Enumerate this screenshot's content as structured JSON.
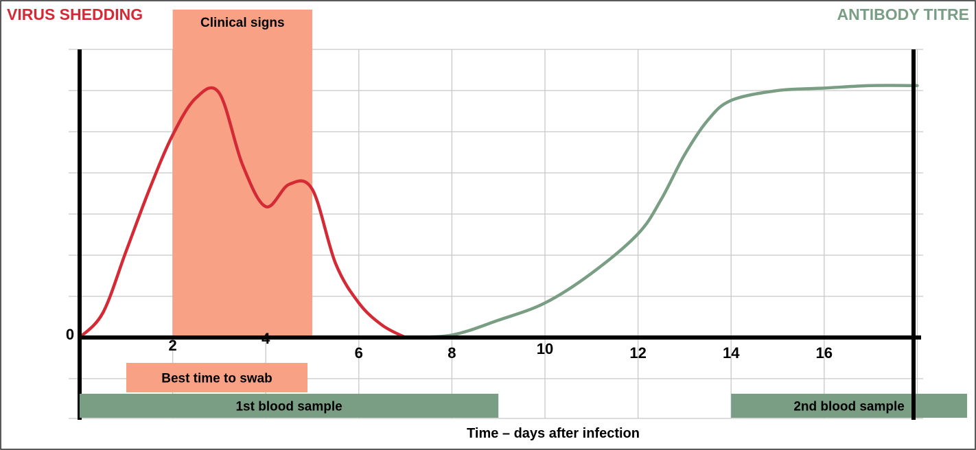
{
  "chart_data": {
    "type": "line",
    "left_label": "VIRUS SHEDDING",
    "right_label": "ANTIBODY TITRE",
    "xlabel": "Time – days after infection",
    "xlim": [
      0,
      18
    ],
    "x_ticks": [
      "0",
      "2",
      "4",
      "6",
      "8",
      "10",
      "12",
      "14",
      "16"
    ],
    "x_tick_values": [
      0,
      2,
      4,
      6,
      8,
      10,
      12,
      14,
      16
    ],
    "grid": true,
    "colors": {
      "virus": "#d42a35",
      "antibody": "#7a9e84",
      "clinical_band": "#f8a184",
      "swab_bar": "#f8a184",
      "blood_bar": "#7a9e84",
      "axis": "#000000",
      "grid": "#c8c8c8",
      "left_label": "#d42a35",
      "right_label": "#7a9e84"
    },
    "series": [
      {
        "name": "VIRUS SHEDDING",
        "x": [
          0,
          0.5,
          1,
          1.5,
          2,
          2.5,
          3,
          3.5,
          4,
          4.5,
          5,
          5.5,
          6,
          6.5,
          7
        ],
        "y": [
          0,
          0.1,
          0.35,
          0.6,
          0.82,
          0.97,
          0.99,
          0.7,
          0.53,
          0.62,
          0.6,
          0.3,
          0.14,
          0.05,
          0
        ]
      },
      {
        "name": "ANTIBODY TITRE",
        "x": [
          7,
          8,
          9,
          10,
          11,
          12,
          12.5,
          13,
          13.5,
          14,
          15,
          16,
          17,
          18
        ],
        "y": [
          0,
          0.01,
          0.07,
          0.14,
          0.26,
          0.42,
          0.56,
          0.74,
          0.88,
          0.96,
          1.0,
          1.01,
          1.02,
          1.02
        ]
      }
    ],
    "bands": [
      {
        "label": "Clinical signs",
        "x_start": 2,
        "x_end": 5
      }
    ],
    "bars": [
      {
        "label": "Best time to swab",
        "x_start": 1,
        "x_end": 5,
        "kind": "swab"
      },
      {
        "label": "1st blood sample",
        "x_start": 0,
        "x_end": 9,
        "kind": "blood"
      },
      {
        "label": "2nd blood sample",
        "x_start": 14,
        "x_end": 19.2,
        "kind": "blood"
      }
    ]
  }
}
